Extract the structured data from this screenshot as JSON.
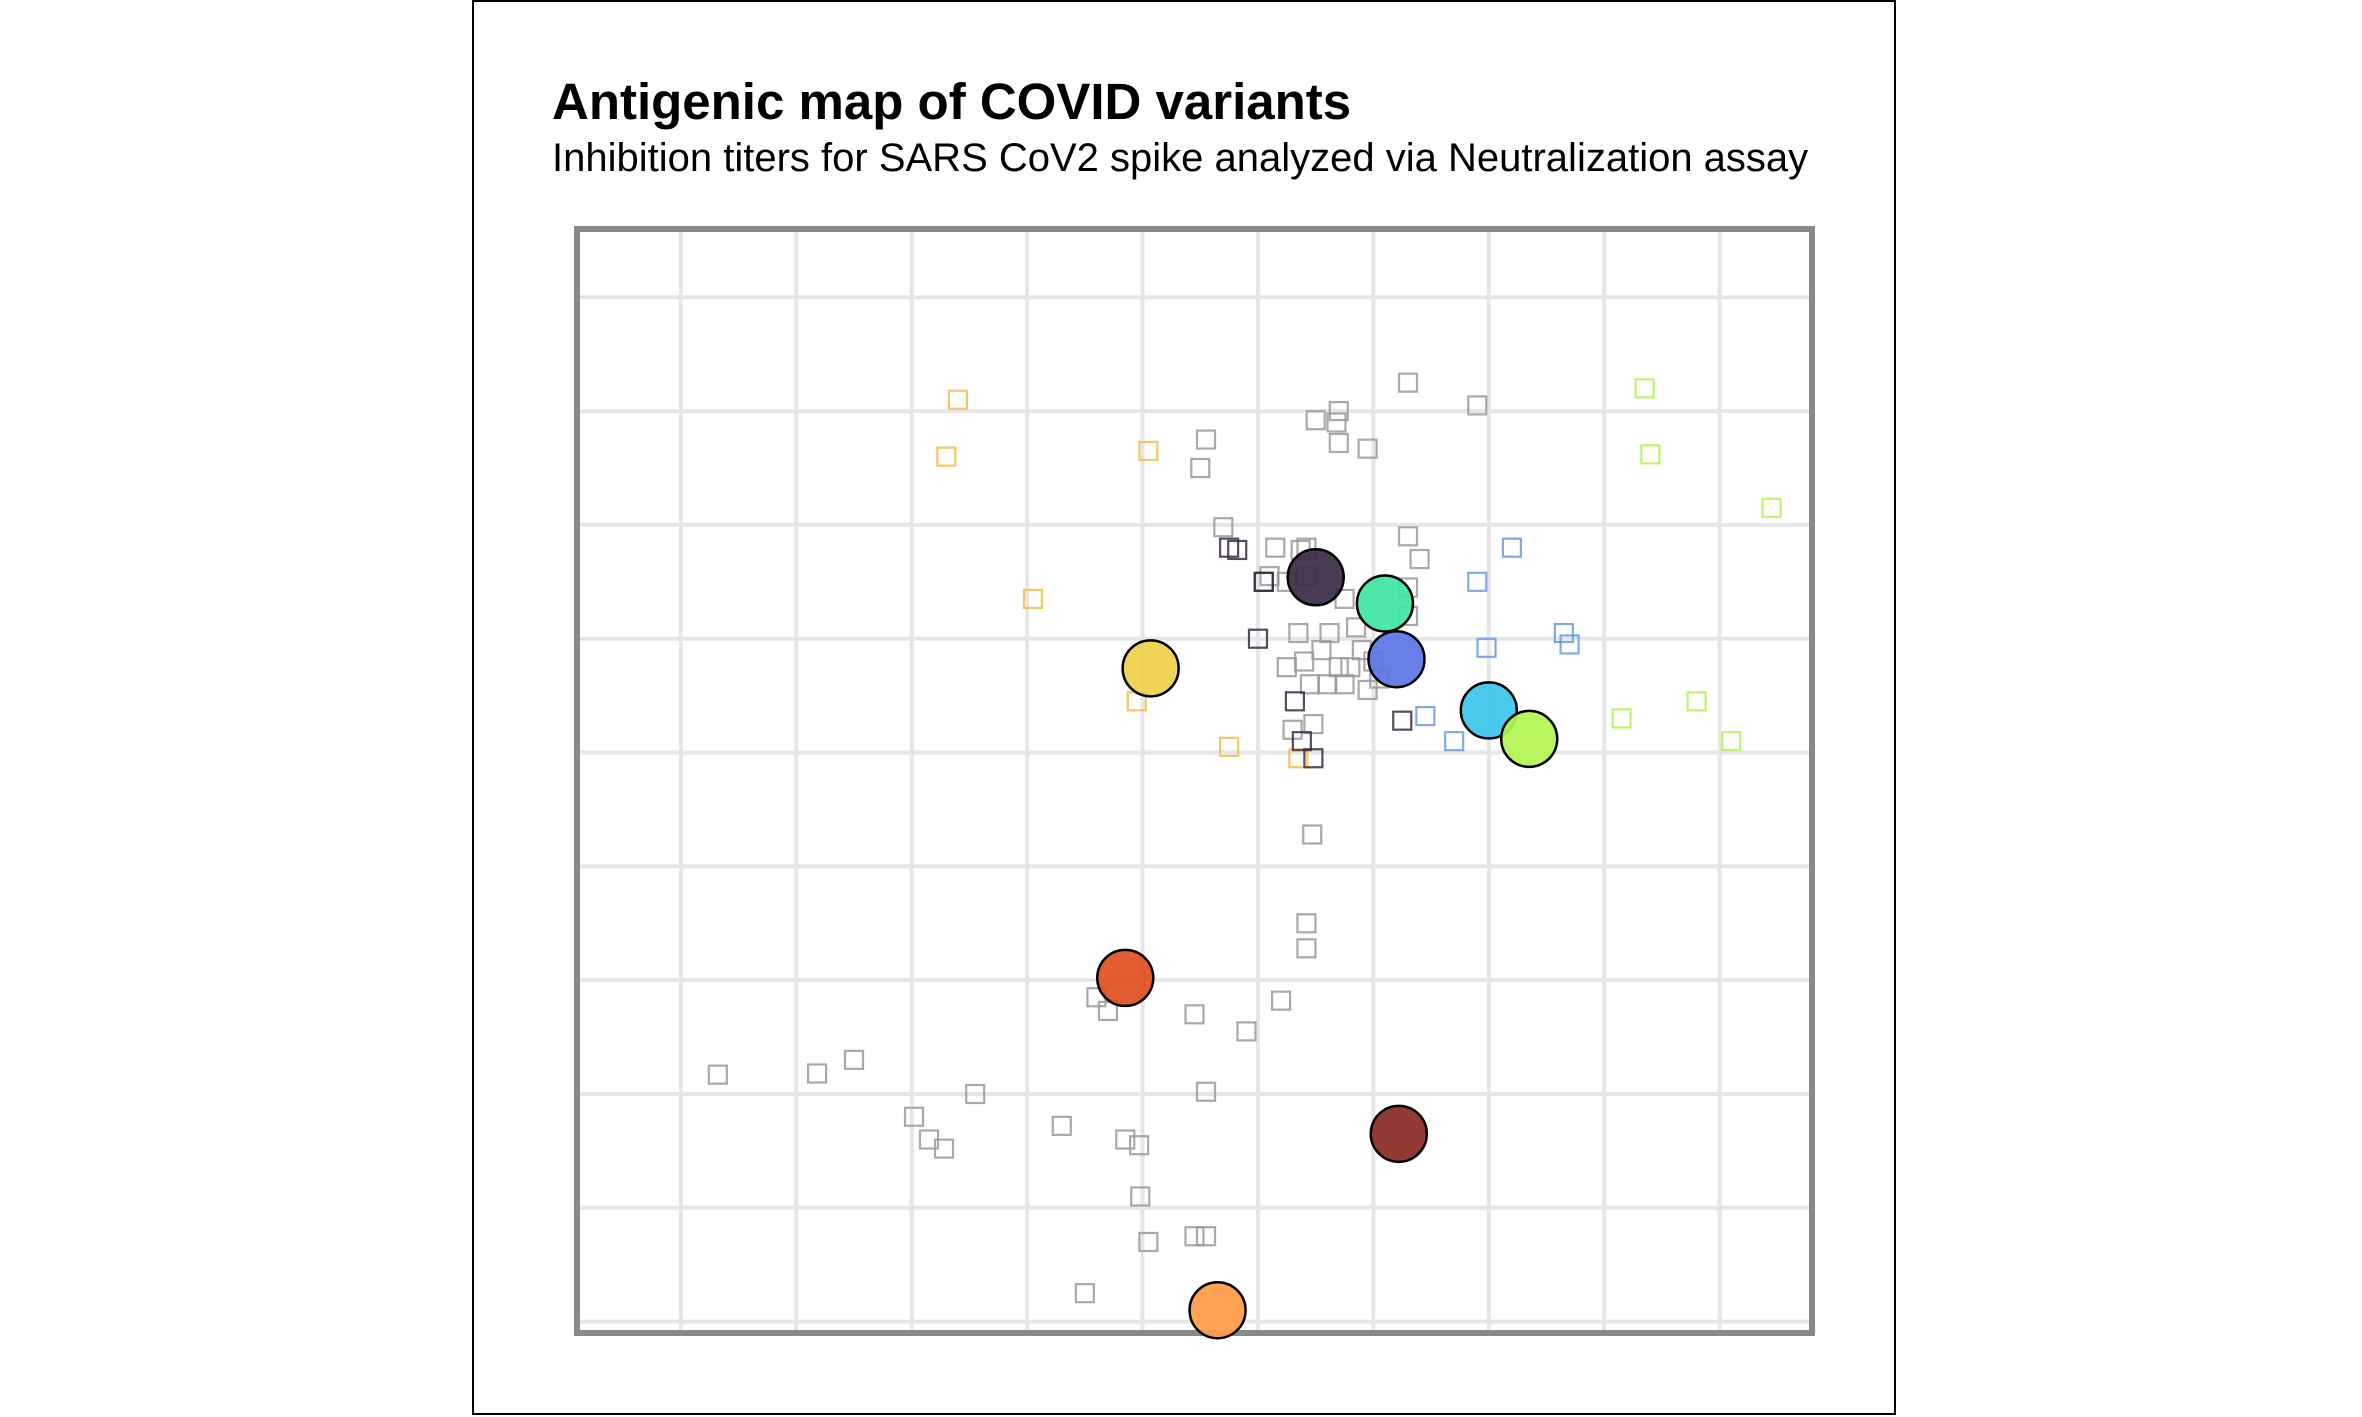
{
  "chart_data": {
    "type": "scatter",
    "title": "Antigenic map of COVID variants",
    "subtitle": "Inhibition titers for SARS CoV2 spike analyzed via Neutralization assay",
    "xlim": [
      -5.4,
      5.3
    ],
    "ylim": [
      -5.1,
      4.6
    ],
    "grid": true,
    "x_gridlines": [
      -4.5,
      -3.5,
      -2.5,
      -1.5,
      -0.5,
      0.5,
      1.5,
      2.5,
      3.5,
      4.5
    ],
    "y_gridlines": [
      4,
      3,
      2,
      1,
      0,
      -1,
      -2,
      -3,
      -4,
      -5
    ],
    "antigens": [
      {
        "color": "#3b2a45",
        "x": 1.0,
        "y": 1.54
      },
      {
        "color": "#3ee6a0",
        "x": 1.6,
        "y": 1.31
      },
      {
        "color": "#5b74e6",
        "x": 1.7,
        "y": 0.82
      },
      {
        "color": "#f0cf48",
        "x": -0.43,
        "y": 0.74
      },
      {
        "color": "#3cc3ec",
        "x": 2.5,
        "y": 0.37
      },
      {
        "color": "#b1f550",
        "x": 2.85,
        "y": 0.12
      },
      {
        "color": "#e04d20",
        "x": -0.65,
        "y": -1.98
      },
      {
        "color": "#8a2a22",
        "x": 1.72,
        "y": -3.35
      },
      {
        "color": "#ff9a45",
        "x": 0.15,
        "y": -4.9
      }
    ],
    "sera_groups": [
      {
        "color": "#9a9a9a",
        "points": [
          [
            1.8,
            3.25
          ],
          [
            2.4,
            3.05
          ],
          [
            1.2,
            3.0
          ],
          [
            1.0,
            2.92
          ],
          [
            1.18,
            2.9
          ],
          [
            0.05,
            2.75
          ],
          [
            0.0,
            2.5
          ],
          [
            1.2,
            2.72
          ],
          [
            1.45,
            2.67
          ],
          [
            0.2,
            1.98
          ],
          [
            0.65,
            1.8
          ],
          [
            0.87,
            1.78
          ],
          [
            0.92,
            1.8
          ],
          [
            1.8,
            1.9
          ],
          [
            1.9,
            1.7
          ],
          [
            1.8,
            1.45
          ],
          [
            0.92,
            1.55
          ],
          [
            1.8,
            1.2
          ],
          [
            0.6,
            1.55
          ],
          [
            0.75,
            1.5
          ],
          [
            1.25,
            1.35
          ],
          [
            1.12,
            1.05
          ],
          [
            1.35,
            1.1
          ],
          [
            0.85,
            1.05
          ],
          [
            1.05,
            0.9
          ],
          [
            1.4,
            0.9
          ],
          [
            1.3,
            0.75
          ],
          [
            0.75,
            0.75
          ],
          [
            0.9,
            0.8
          ],
          [
            1.1,
            0.6
          ],
          [
            1.2,
            0.75
          ],
          [
            0.95,
            0.6
          ],
          [
            1.25,
            0.6
          ],
          [
            1.5,
            0.8
          ],
          [
            1.45,
            0.55
          ],
          [
            1.55,
            0.65
          ],
          [
            0.8,
            0.2
          ],
          [
            0.98,
            0.25
          ],
          [
            0.97,
            -0.72
          ],
          [
            0.92,
            -1.5
          ],
          [
            0.92,
            -1.72
          ],
          [
            0.7,
            -2.18
          ],
          [
            0.4,
            -2.45
          ],
          [
            0.05,
            -2.98
          ],
          [
            -0.9,
            -2.15
          ],
          [
            -0.8,
            -2.27
          ],
          [
            -0.05,
            -2.3
          ],
          [
            -3.0,
            -2.7
          ],
          [
            -3.32,
            -2.82
          ],
          [
            -4.18,
            -2.83
          ],
          [
            -1.95,
            -3.0
          ],
          [
            -2.48,
            -3.2
          ],
          [
            -1.2,
            -3.28
          ],
          [
            -2.35,
            -3.4
          ],
          [
            -2.22,
            -3.48
          ],
          [
            -0.65,
            -3.4
          ],
          [
            -0.53,
            -3.45
          ],
          [
            -0.52,
            -3.9
          ],
          [
            -0.45,
            -4.3
          ],
          [
            -0.05,
            -4.25
          ],
          [
            0.05,
            -4.25
          ],
          [
            -1.0,
            -4.75
          ]
        ]
      },
      {
        "color": "#f2bc49",
        "points": [
          [
            -2.1,
            3.1
          ],
          [
            -2.2,
            2.6
          ],
          [
            -0.45,
            2.65
          ],
          [
            -1.45,
            1.35
          ],
          [
            -0.55,
            0.45
          ],
          [
            0.25,
            0.05
          ],
          [
            0.85,
            -0.05
          ]
        ]
      },
      {
        "color": "#3b2a45",
        "points": [
          [
            0.25,
            1.8
          ],
          [
            0.32,
            1.78
          ],
          [
            0.55,
            1.5
          ],
          [
            0.55,
            1.5
          ],
          [
            0.5,
            1.0
          ],
          [
            0.82,
            0.45
          ],
          [
            0.88,
            0.1
          ],
          [
            0.98,
            -0.05
          ],
          [
            1.75,
            0.28
          ]
        ]
      },
      {
        "color": "#6a9ae6",
        "points": [
          [
            2.4,
            1.5
          ],
          [
            2.7,
            1.8
          ],
          [
            2.48,
            0.92
          ],
          [
            3.15,
            1.05
          ],
          [
            3.2,
            0.95
          ],
          [
            1.95,
            0.32
          ],
          [
            2.2,
            0.1
          ]
        ]
      },
      {
        "color": "#b1f550",
        "points": [
          [
            3.85,
            3.2
          ],
          [
            3.9,
            2.62
          ],
          [
            4.95,
            2.15
          ],
          [
            3.65,
            0.3
          ],
          [
            4.3,
            0.45
          ],
          [
            4.6,
            0.1
          ]
        ]
      }
    ]
  }
}
